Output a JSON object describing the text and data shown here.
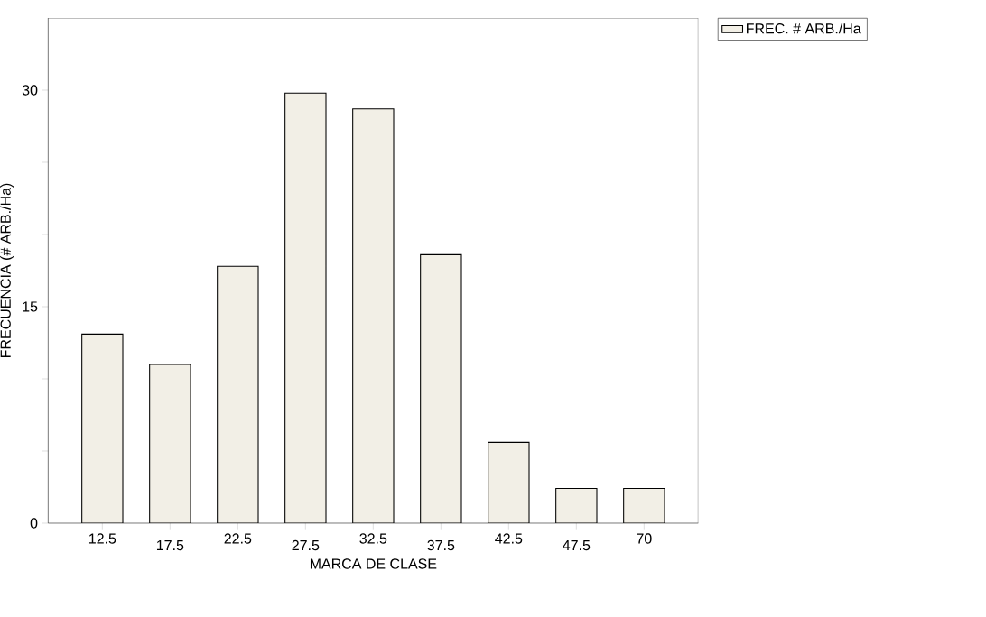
{
  "chart_data": {
    "type": "bar",
    "xlabel": "MARCA DE CLASE",
    "ylabel": "FRECUENCIA (# ARB./Ha)",
    "categories": [
      "12.5",
      "17.5",
      "22.5",
      "27.5",
      "32.5",
      "37.5",
      "42.5",
      "47.5",
      "70"
    ],
    "series": [
      {
        "name": "FREC. # ARB./Ha",
        "color": "#f2efe6",
        "values": [
          13.1,
          11.0,
          17.8,
          29.8,
          28.7,
          18.6,
          5.6,
          2.4,
          2.4
        ]
      }
    ],
    "ylim": [
      0,
      35
    ],
    "yticks": [
      0,
      {
        "value": 5,
        "label": null
      },
      {
        "value": 10,
        "label": null
      },
      15,
      {
        "value": 20,
        "label": null
      },
      {
        "value": 25,
        "label": null
      },
      30
    ],
    "legend": "top right",
    "grid": false
  }
}
